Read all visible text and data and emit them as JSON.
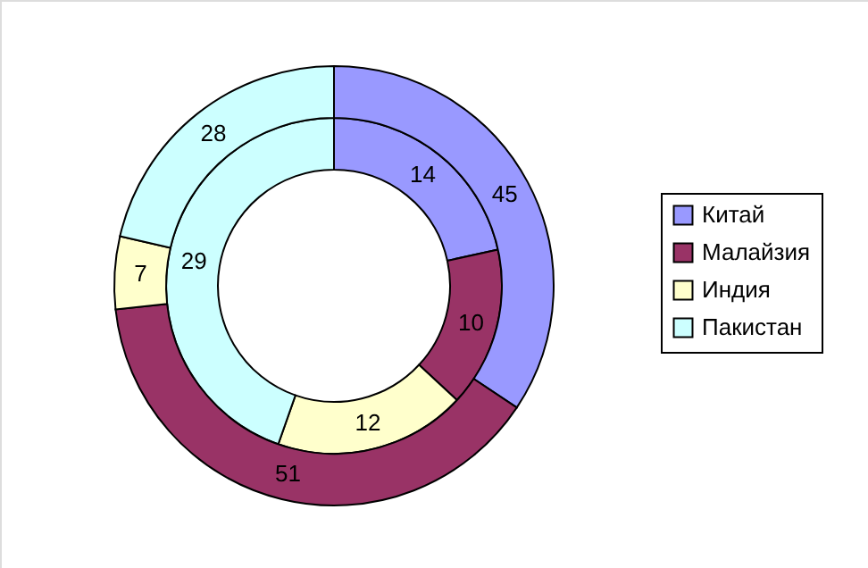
{
  "chart_data": {
    "type": "donut",
    "categories": [
      "Китай",
      "Малайзия",
      "Индия",
      "Пакистан"
    ],
    "colors": [
      "#9999ff",
      "#993366",
      "#ffffcc",
      "#ccffff"
    ],
    "series": [
      {
        "values": [
          14,
          10,
          12,
          29
        ]
      },
      {
        "values": [
          45,
          51,
          7,
          28
        ]
      }
    ],
    "data_labels": true,
    "legend": "right"
  }
}
